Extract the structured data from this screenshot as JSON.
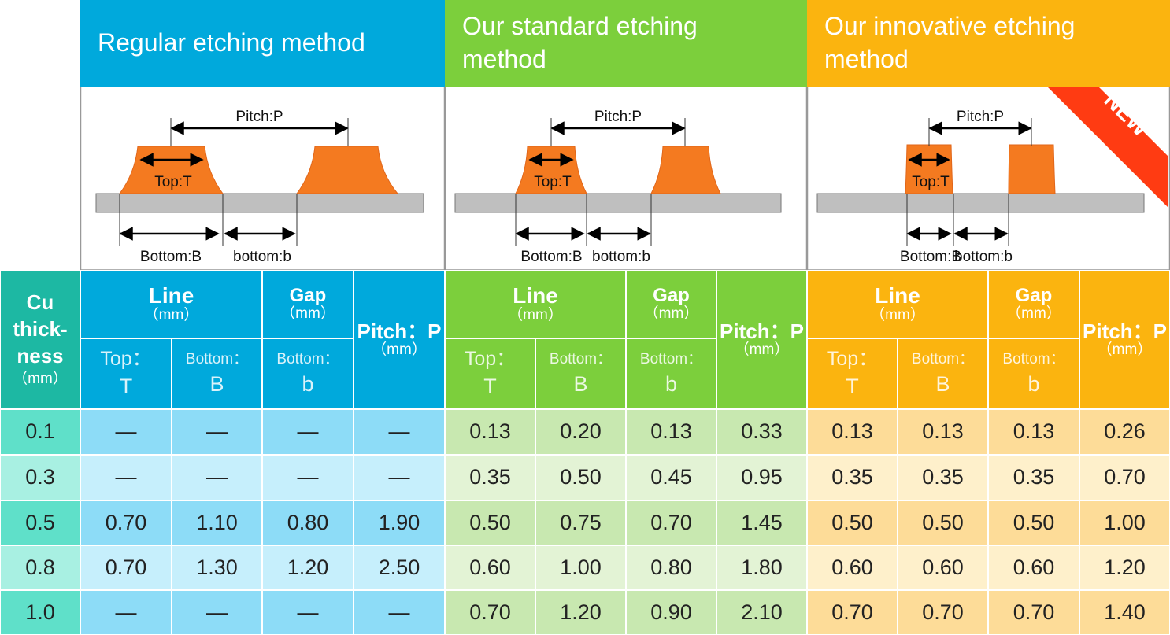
{
  "methods": [
    {
      "title": "Regular etching method",
      "pitch_label": "Pitch:P",
      "top_label": "Top:T",
      "bottom_label": "Bottom:B",
      "gap_label": "bottom:b"
    },
    {
      "title": "Our standard etching method",
      "pitch_label": "Pitch:P",
      "top_label": "Top:T",
      "bottom_label": "Bottom:B",
      "gap_label": "bottom:b"
    },
    {
      "title": "Our innovative etching method",
      "pitch_label": "Pitch:P",
      "top_label": "Top:T",
      "bottom_label": "Bottom:B",
      "gap_label": "bottom:b",
      "badge": "NEW"
    }
  ],
  "table": {
    "cu_header": [
      "Cu",
      "thick-",
      "ness",
      "（mm）"
    ],
    "groups": [
      {
        "line": "Line",
        "line_unit": "（mm）",
        "gap": "Gap",
        "gap_unit": "（mm）",
        "pitch": "Pitch：P",
        "pitch_unit": "（mm）",
        "sub": [
          [
            "Top：",
            "T"
          ],
          [
            "Bottom：",
            "B"
          ],
          [
            "Bottom：",
            "b"
          ]
        ]
      },
      {
        "line": "Line",
        "line_unit": "（mm）",
        "gap": "Gap",
        "gap_unit": "（mm）",
        "pitch": "Pitch：P",
        "pitch_unit": "（mm）",
        "sub": [
          [
            "Top：",
            "T"
          ],
          [
            "Bottom：",
            "B"
          ],
          [
            "Bottom：",
            "b"
          ]
        ]
      },
      {
        "line": "Line",
        "line_unit": "（mm）",
        "gap": "Gap",
        "gap_unit": "（mm）",
        "pitch": "Pitch：P",
        "pitch_unit": "（mm）",
        "sub": [
          [
            "Top：",
            "T"
          ],
          [
            "Bottom：",
            "B"
          ],
          [
            "Bottom：",
            "b"
          ]
        ]
      }
    ],
    "rows": [
      {
        "thickness": "0.1",
        "cells": [
          "—",
          "—",
          "—",
          "—",
          "0.13",
          "0.20",
          "0.13",
          "0.33",
          "0.13",
          "0.13",
          "0.13",
          "0.26"
        ]
      },
      {
        "thickness": "0.3",
        "cells": [
          "—",
          "—",
          "—",
          "—",
          "0.35",
          "0.50",
          "0.45",
          "0.95",
          "0.35",
          "0.35",
          "0.35",
          "0.70"
        ]
      },
      {
        "thickness": "0.5",
        "cells": [
          "0.70",
          "1.10",
          "0.80",
          "1.90",
          "0.50",
          "0.75",
          "0.70",
          "1.45",
          "0.50",
          "0.50",
          "0.50",
          "1.00"
        ]
      },
      {
        "thickness": "0.8",
        "cells": [
          "0.70",
          "1.30",
          "1.20",
          "2.50",
          "0.60",
          "1.00",
          "0.80",
          "1.80",
          "0.60",
          "0.60",
          "0.60",
          "1.20"
        ]
      },
      {
        "thickness": "1.0",
        "cells": [
          "—",
          "—",
          "—",
          "—",
          "0.70",
          "1.20",
          "0.90",
          "2.10",
          "0.70",
          "0.70",
          "0.70",
          "1.40"
        ]
      }
    ]
  }
}
